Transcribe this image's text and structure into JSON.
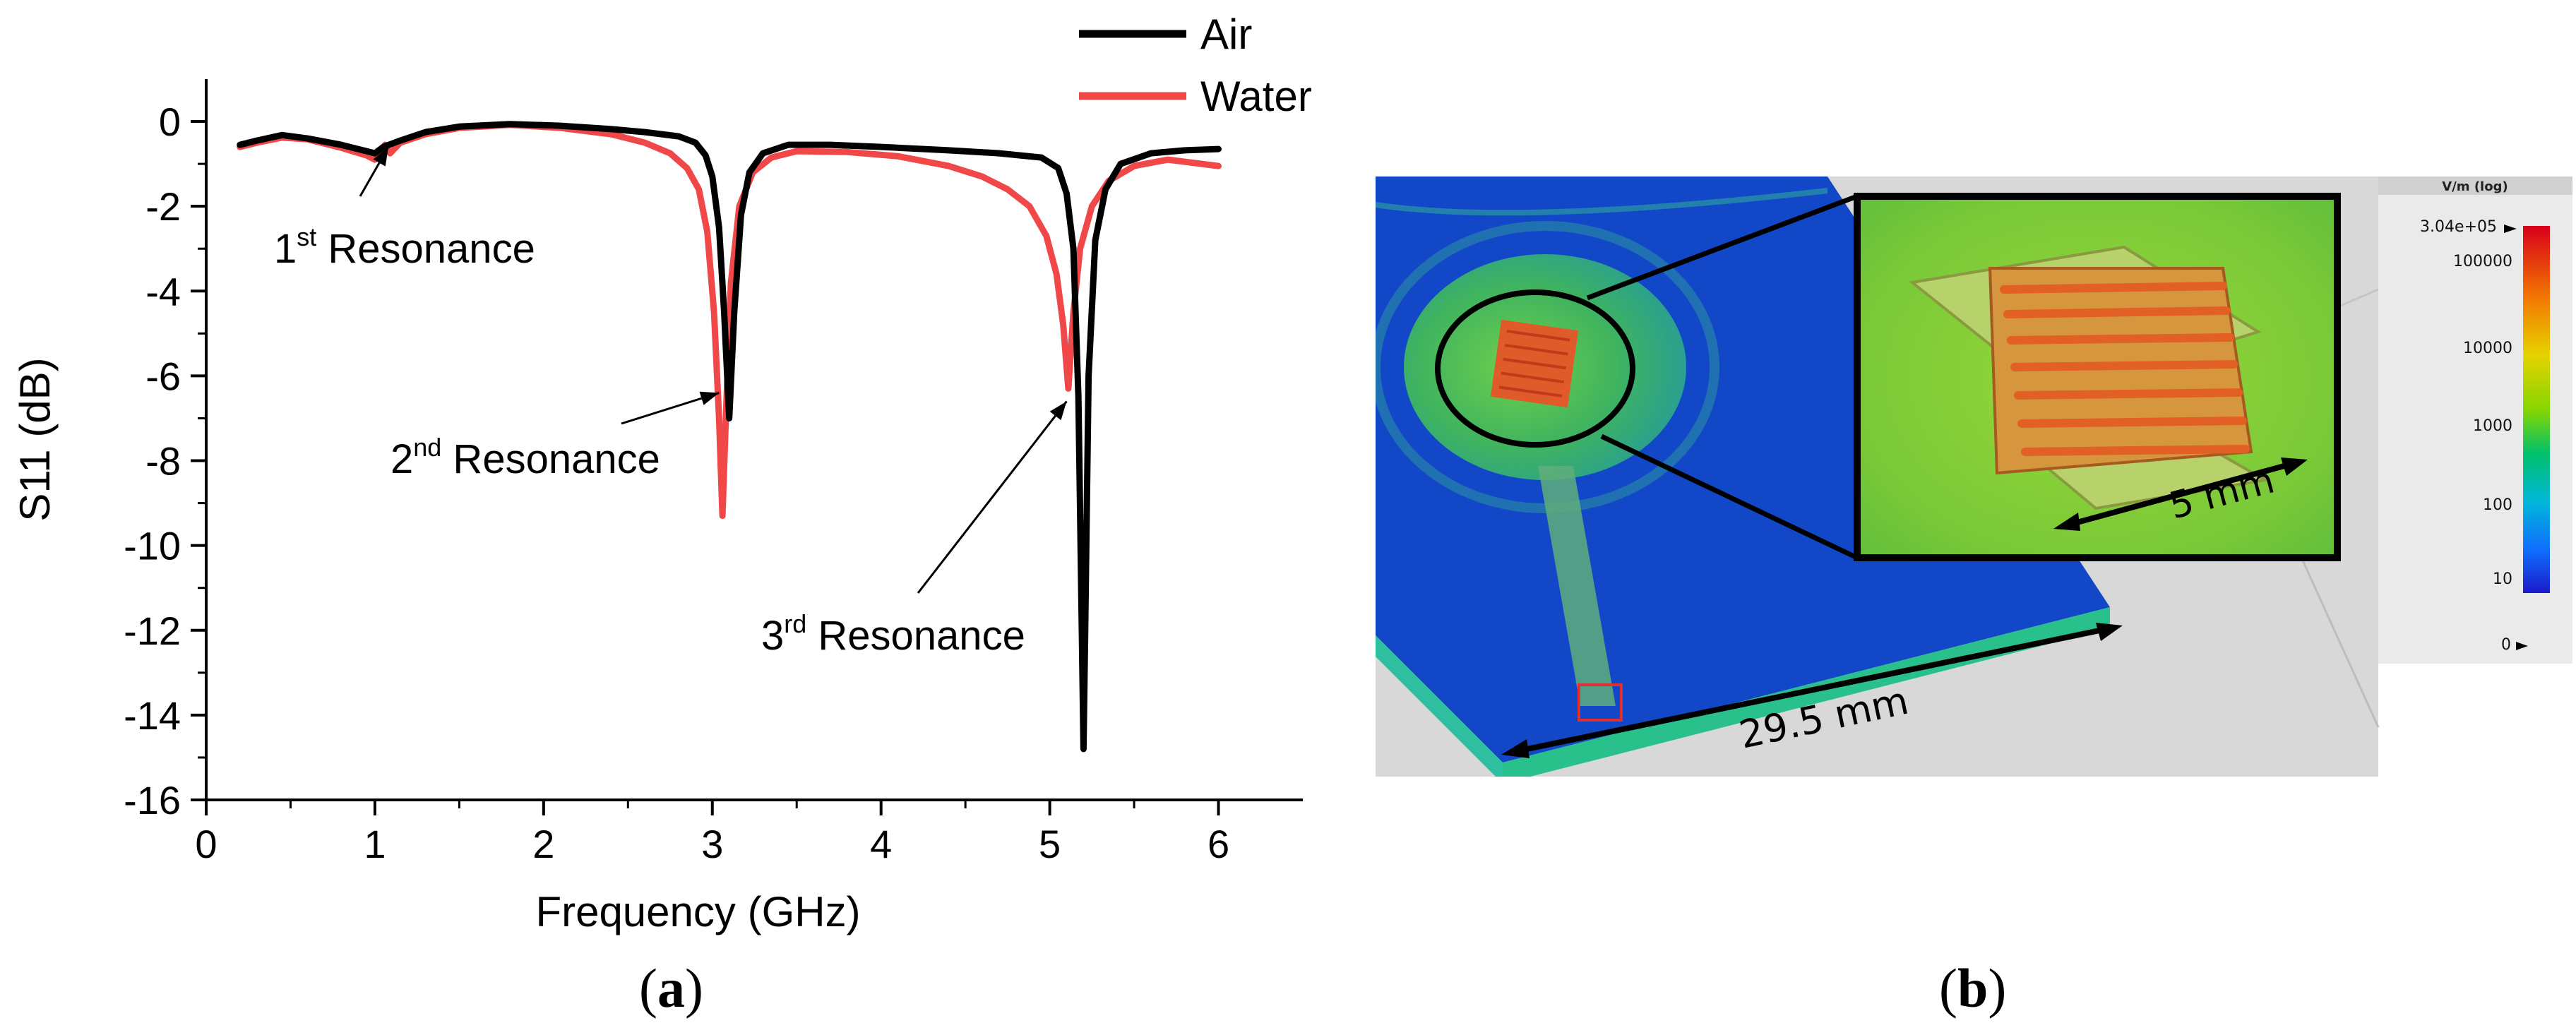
{
  "chart_data": {
    "type": "line",
    "title": "",
    "xlabel": "Frequency (GHz)",
    "ylabel": "S11 (dB)",
    "xlim": [
      0,
      6.5
    ],
    "ylim": [
      -16,
      1
    ],
    "xticks": [
      0,
      1,
      2,
      3,
      4,
      5,
      6
    ],
    "yticks": [
      0,
      -2,
      -4,
      -6,
      -8,
      -10,
      -12,
      -14,
      -16
    ],
    "legend_position": "top-right",
    "series": [
      {
        "name": "Air",
        "color": "#000000",
        "points": [
          [
            0.2,
            -0.55
          ],
          [
            0.3,
            -0.45
          ],
          [
            0.45,
            -0.32
          ],
          [
            0.6,
            -0.4
          ],
          [
            0.8,
            -0.55
          ],
          [
            0.95,
            -0.7
          ],
          [
            1.0,
            -0.75
          ],
          [
            1.05,
            -0.6
          ],
          [
            1.15,
            -0.45
          ],
          [
            1.3,
            -0.25
          ],
          [
            1.5,
            -0.12
          ],
          [
            1.8,
            -0.06
          ],
          [
            2.1,
            -0.1
          ],
          [
            2.4,
            -0.18
          ],
          [
            2.6,
            -0.25
          ],
          [
            2.8,
            -0.35
          ],
          [
            2.9,
            -0.5
          ],
          [
            2.96,
            -0.8
          ],
          [
            3.0,
            -1.3
          ],
          [
            3.04,
            -2.5
          ],
          [
            3.07,
            -4.5
          ],
          [
            3.1,
            -7.0
          ],
          [
            3.13,
            -4.5
          ],
          [
            3.17,
            -2.2
          ],
          [
            3.22,
            -1.2
          ],
          [
            3.3,
            -0.75
          ],
          [
            3.45,
            -0.55
          ],
          [
            3.7,
            -0.55
          ],
          [
            4.0,
            -0.6
          ],
          [
            4.4,
            -0.68
          ],
          [
            4.7,
            -0.75
          ],
          [
            4.95,
            -0.85
          ],
          [
            5.05,
            -1.1
          ],
          [
            5.1,
            -1.7
          ],
          [
            5.14,
            -3.0
          ],
          [
            5.17,
            -6.5
          ],
          [
            5.19,
            -12.0
          ],
          [
            5.2,
            -14.8
          ],
          [
            5.21,
            -12.0
          ],
          [
            5.23,
            -6.0
          ],
          [
            5.27,
            -2.8
          ],
          [
            5.33,
            -1.6
          ],
          [
            5.42,
            -1.0
          ],
          [
            5.6,
            -0.75
          ],
          [
            5.8,
            -0.68
          ],
          [
            6.0,
            -0.65
          ]
        ]
      },
      {
        "name": "Water",
        "color": "#f04848",
        "points": [
          [
            0.2,
            -0.6
          ],
          [
            0.3,
            -0.5
          ],
          [
            0.45,
            -0.38
          ],
          [
            0.6,
            -0.42
          ],
          [
            0.8,
            -0.62
          ],
          [
            0.95,
            -0.8
          ],
          [
            1.0,
            -0.9
          ],
          [
            1.03,
            -0.75
          ],
          [
            1.06,
            -0.55
          ],
          [
            1.09,
            -0.75
          ],
          [
            1.15,
            -0.5
          ],
          [
            1.3,
            -0.3
          ],
          [
            1.5,
            -0.15
          ],
          [
            1.8,
            -0.08
          ],
          [
            2.1,
            -0.15
          ],
          [
            2.4,
            -0.3
          ],
          [
            2.6,
            -0.5
          ],
          [
            2.75,
            -0.75
          ],
          [
            2.85,
            -1.1
          ],
          [
            2.92,
            -1.6
          ],
          [
            2.97,
            -2.6
          ],
          [
            3.01,
            -4.5
          ],
          [
            3.04,
            -7.0
          ],
          [
            3.06,
            -9.3
          ],
          [
            3.08,
            -7.0
          ],
          [
            3.11,
            -3.8
          ],
          [
            3.16,
            -2.0
          ],
          [
            3.24,
            -1.2
          ],
          [
            3.35,
            -0.85
          ],
          [
            3.5,
            -0.7
          ],
          [
            3.8,
            -0.72
          ],
          [
            4.1,
            -0.82
          ],
          [
            4.4,
            -1.05
          ],
          [
            4.6,
            -1.3
          ],
          [
            4.75,
            -1.6
          ],
          [
            4.88,
            -2.0
          ],
          [
            4.98,
            -2.7
          ],
          [
            5.04,
            -3.6
          ],
          [
            5.08,
            -4.8
          ],
          [
            5.11,
            -6.3
          ],
          [
            5.14,
            -4.5
          ],
          [
            5.18,
            -3.0
          ],
          [
            5.25,
            -2.0
          ],
          [
            5.35,
            -1.4
          ],
          [
            5.5,
            -1.05
          ],
          [
            5.7,
            -0.9
          ],
          [
            6.0,
            -1.05
          ]
        ]
      }
    ],
    "annotations": [
      {
        "base": "1",
        "sup": "st",
        "text": " Resonance",
        "arrow_to": [
          1.08,
          -0.6
        ]
      },
      {
        "base": "2",
        "sup": "nd",
        "text": " Resonance",
        "arrow_to": [
          3.04,
          -6.4
        ]
      },
      {
        "base": "3",
        "sup": "rd",
        "text": " Resonance",
        "arrow_to": [
          5.1,
          -6.6
        ]
      }
    ]
  },
  "captions": {
    "a": "a",
    "b": "b"
  },
  "simulation": {
    "dimension_main": "29.5 mm",
    "dimension_inset": "5 mm",
    "colorbar": {
      "unit": "V/m (log)",
      "max_label": "3.04e+05",
      "ticks": [
        "100000",
        "10000",
        "1000",
        "100",
        "10",
        "0"
      ]
    }
  }
}
